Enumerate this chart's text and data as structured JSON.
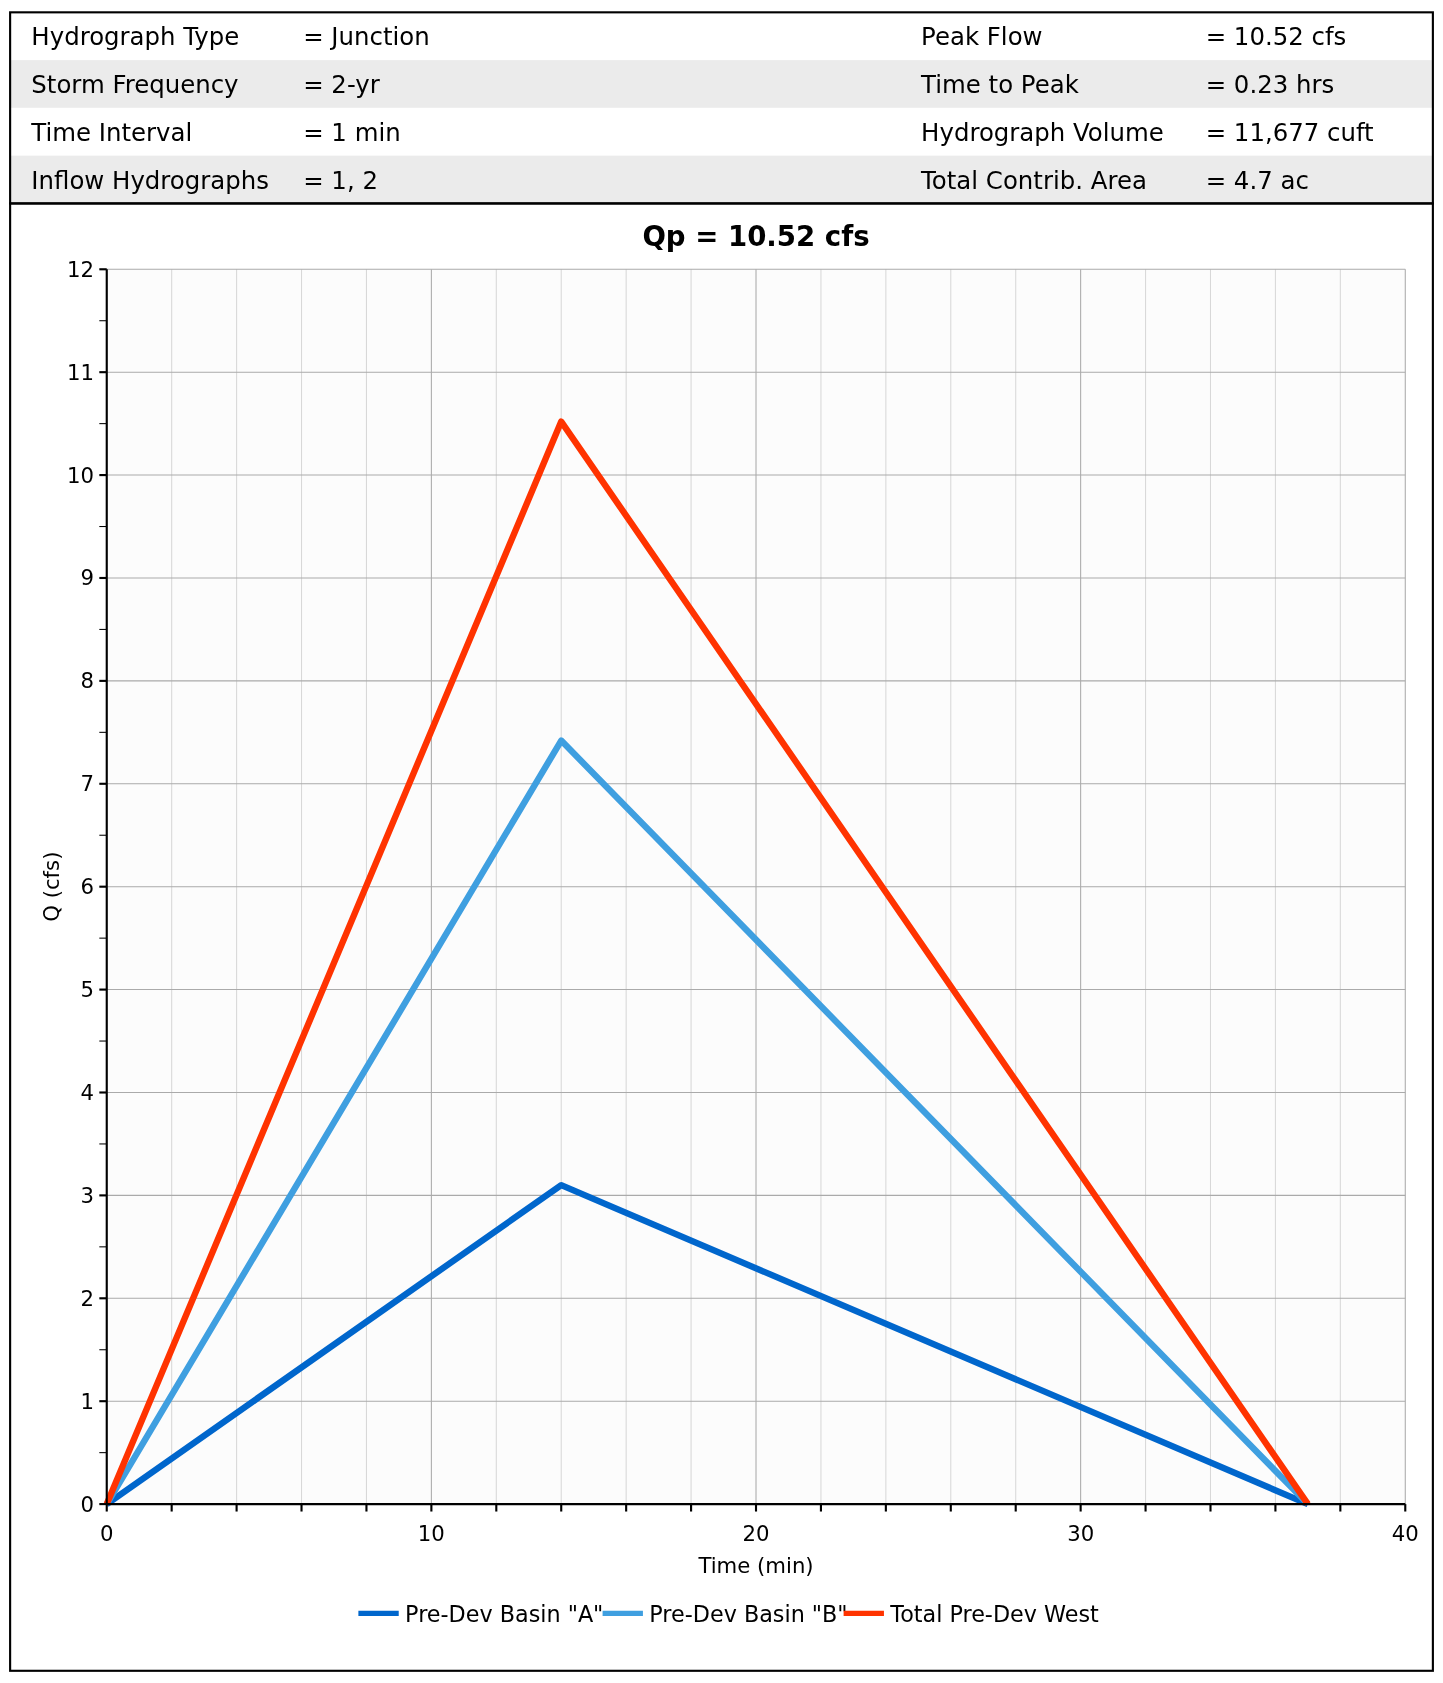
{
  "chart_data": {
    "type": "line",
    "title": "Qp = 10.52 cfs",
    "xlabel": "Time (min)",
    "ylabel": "Q (cfs)",
    "annotations": [
      "Hydrograph Type",
      "= Junction",
      "Peak Flow",
      "= 10.52 cfs",
      "Storm Frequency",
      "= 2-yr",
      "Time to Peak",
      "= 0.23 hrs",
      "Time Interval",
      "= 1 min",
      "Hydrograph Volume",
      "= 11,677 cuft",
      "Inflow Hydrographs",
      "= 1, 2",
      "Total Contrib. Area",
      "= 4.7 ac"
    ],
    "x": [
      0,
      14,
      37
    ],
    "series": [
      {
        "name": "Pre-Dev Basin \"A\"",
        "color": "#0066cc",
        "values": [
          0,
          3.1,
          0
        ]
      },
      {
        "name": "Pre-Dev Basin \"B\"",
        "color": "#3f9fe0",
        "values": [
          0,
          7.42,
          0
        ]
      },
      {
        "name": "Total Pre-Dev West",
        "color": "#ff3300",
        "values": [
          0,
          10.52,
          0
        ]
      }
    ],
    "xlim": [
      0,
      40
    ],
    "xticks": [
      0,
      {
        "value": 2,
        "label": null
      },
      {
        "value": 4,
        "label": null
      },
      {
        "value": 6,
        "label": null
      },
      {
        "value": 8,
        "label": null
      },
      10,
      {
        "value": 12,
        "label": null
      },
      {
        "value": 14,
        "label": null
      },
      {
        "value": 16,
        "label": null
      },
      {
        "value": 18,
        "label": null
      },
      20,
      {
        "value": 22,
        "label": null
      },
      {
        "value": 24,
        "label": null
      },
      {
        "value": 26,
        "label": null
      },
      {
        "value": 28,
        "label": null
      },
      30,
      {
        "value": 32,
        "label": null
      },
      {
        "value": 34,
        "label": null
      },
      {
        "value": 36,
        "label": null
      },
      {
        "value": 38,
        "label": null
      },
      40
    ],
    "ylim": [
      0,
      12
    ],
    "yticks": [
      0,
      {
        "value": 0.5,
        "label": null
      },
      1,
      {
        "value": 1.5,
        "label": null
      },
      2,
      {
        "value": 2.5,
        "label": null
      },
      3,
      {
        "value": 3.5,
        "label": null
      },
      4,
      {
        "value": 4.5,
        "label": null
      },
      5,
      {
        "value": 5.5,
        "label": null
      },
      6,
      {
        "value": 6.5,
        "label": null
      },
      7,
      {
        "value": 7.5,
        "label": null
      },
      8,
      {
        "value": 8.5,
        "label": null
      },
      9,
      {
        "value": 9.5,
        "label": null
      },
      10,
      {
        "value": 10.5,
        "label": null
      },
      11,
      {
        "value": 11.5,
        "label": null
      },
      12
    ],
    "grid": true,
    "legend": "bottom",
    "marker": "none",
    "line_style": "solid"
  }
}
